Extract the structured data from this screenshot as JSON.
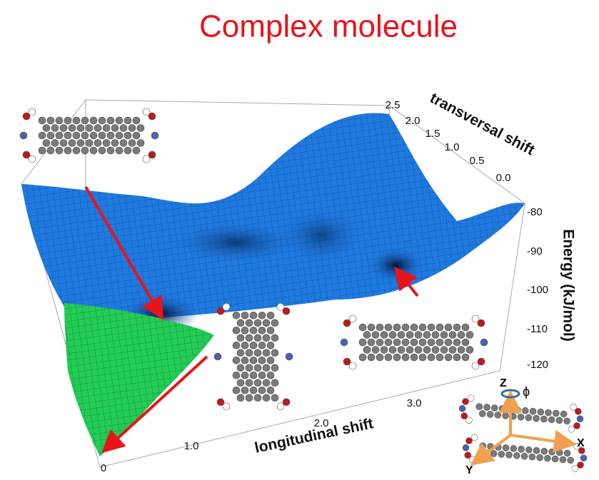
{
  "title": "Complex molecule",
  "axes": {
    "transversal": {
      "label": "transversal shift",
      "ticks": [
        "2.5",
        "2.0",
        "1.5",
        "1.0",
        "0.5",
        "0.0"
      ]
    },
    "energy": {
      "label": "Energy (kJ/mol)",
      "ticks": [
        "-80",
        "-90",
        "-100",
        "-110",
        "-120"
      ]
    },
    "longitudinal": {
      "label": "longitudinal shift",
      "ticks": [
        "0",
        "1.0",
        "2.0",
        "3.0"
      ]
    }
  },
  "inset": {
    "z": "Z",
    "phi": "ϕ",
    "x": "X",
    "y": "Y"
  }
}
